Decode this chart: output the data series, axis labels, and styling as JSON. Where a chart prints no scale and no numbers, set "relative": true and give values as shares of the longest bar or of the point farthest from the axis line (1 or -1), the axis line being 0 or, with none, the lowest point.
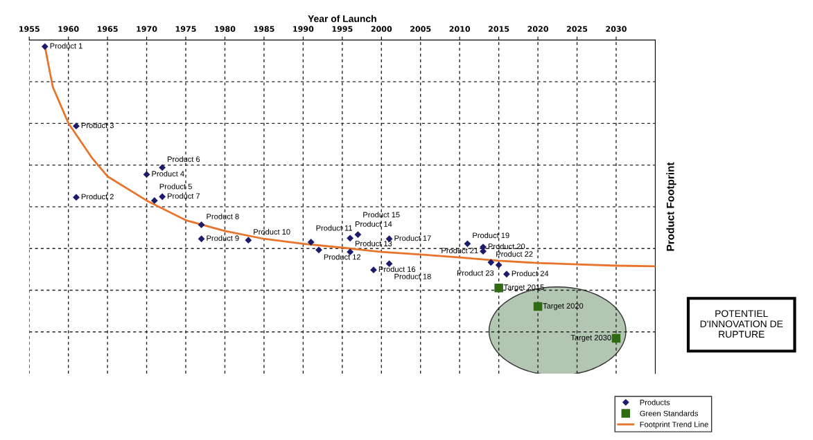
{
  "chart_data": {
    "type": "scatter",
    "xlabel": "Year of Launch",
    "ylabel": "Product Footprint",
    "relative": true,
    "xlim": [
      1955,
      2035
    ],
    "xticks": [
      1955,
      1960,
      1965,
      1970,
      1975,
      1980,
      1985,
      1990,
      1995,
      2000,
      2005,
      2010,
      2015,
      2020,
      2025,
      2030
    ],
    "grid": true,
    "legend": "bottom right",
    "series": [
      {
        "name": "Products",
        "marker": "diamond",
        "color": "#1c1c6b",
        "x": [
          1957,
          1961,
          1961,
          1970,
          1971,
          1972,
          1972,
          1977,
          1977,
          1983,
          1991,
          1992,
          1996,
          1996,
          1997,
          1999,
          2001,
          2001,
          2011,
          2013,
          2013,
          2014,
          2015,
          2016
        ],
        "values": [
          1.0,
          0.539,
          0.757,
          0.609,
          0.529,
          0.63,
          0.541,
          0.455,
          0.412,
          0.408,
          0.402,
          0.378,
          0.372,
          0.414,
          0.425,
          0.317,
          0.412,
          0.336,
          0.397,
          0.387,
          0.374,
          0.34,
          0.332,
          0.304
        ]
      },
      {
        "name": "Green Standards",
        "marker": "square",
        "color": "#2e6b12",
        "x": [
          2015,
          2020,
          2030
        ],
        "values": [
          0.262,
          0.205,
          0.108
        ]
      },
      {
        "name": "Footprint Trend Line",
        "type": "line",
        "marker": "none",
        "line_style": "solid",
        "color": "#e8732a",
        "x": [
          1957,
          1958,
          1960,
          1963,
          1965,
          1970,
          1975,
          1980,
          1985,
          1990,
          1995,
          2000,
          2005,
          2010,
          2015,
          2020,
          2025,
          2030,
          2035
        ],
        "values": [
          1.0,
          0.877,
          0.766,
          0.66,
          0.603,
          0.529,
          0.469,
          0.436,
          0.412,
          0.397,
          0.385,
          0.372,
          0.364,
          0.355,
          0.345,
          0.338,
          0.334,
          0.33,
          0.328
        ]
      }
    ],
    "annotations": [
      {
        "text": "Product 1",
        "x": 1957,
        "y": 1.0
      },
      {
        "text": "Product 2",
        "x": 1961,
        "y": 0.539
      },
      {
        "text": "Product 3",
        "x": 1961,
        "y": 0.757
      },
      {
        "text": "Product 4",
        "x": 1970,
        "y": 0.609
      },
      {
        "text": "Product 5",
        "x": 1971,
        "y": 0.529
      },
      {
        "text": "Product 6",
        "x": 1972,
        "y": 0.63
      },
      {
        "text": "Product 7",
        "x": 1972,
        "y": 0.541
      },
      {
        "text": "Product 8",
        "x": 1977,
        "y": 0.455
      },
      {
        "text": "Product 9",
        "x": 1977,
        "y": 0.412
      },
      {
        "text": "Product 10",
        "x": 1983,
        "y": 0.408
      },
      {
        "text": "Product 11",
        "x": 1991,
        "y": 0.402
      },
      {
        "text": "Product 12",
        "x": 1992,
        "y": 0.378
      },
      {
        "text": "Product 13",
        "x": 1996,
        "y": 0.372
      },
      {
        "text": "Product 14",
        "x": 1996,
        "y": 0.414
      },
      {
        "text": "Product 15",
        "x": 1997,
        "y": 0.425
      },
      {
        "text": "Product 16",
        "x": 1999,
        "y": 0.317
      },
      {
        "text": "Product 17",
        "x": 2001,
        "y": 0.412
      },
      {
        "text": "Product 18",
        "x": 2001,
        "y": 0.336
      },
      {
        "text": "Product 19",
        "x": 2011,
        "y": 0.397
      },
      {
        "text": "Product 20",
        "x": 2013,
        "y": 0.387
      },
      {
        "text": "Product 21",
        "x": 2013,
        "y": 0.374
      },
      {
        "text": "Product 22",
        "x": 2014,
        "y": 0.34
      },
      {
        "text": "Product 23",
        "x": 2015,
        "y": 0.332
      },
      {
        "text": "Product 24",
        "x": 2016,
        "y": 0.304
      },
      {
        "text": "Target 2015",
        "x": 2015,
        "y": 0.262
      },
      {
        "text": "Target 2020",
        "x": 2020,
        "y": 0.205
      },
      {
        "text": "Target 2030",
        "x": 2030,
        "y": 0.108
      },
      "POTENTIEL\nD'INNOVATION DE\nRUPTURE"
    ]
  }
}
